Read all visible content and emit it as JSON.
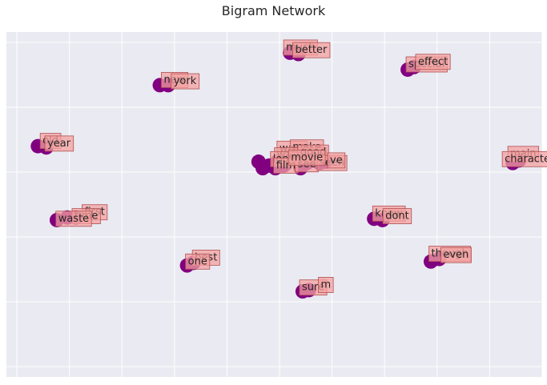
{
  "chart_data": {
    "type": "scatter",
    "title": "Bigram Network",
    "xlabel": "",
    "ylabel": "",
    "xlim": [
      -1.3,
      1.25
    ],
    "ylim": [
      -1.33,
      1.33
    ],
    "grid": true,
    "colors": {
      "background": "#eaeaf2",
      "grid": "#ffffff",
      "node": "#800080",
      "label_box": "#f4a0a0",
      "label_box_edge": "#b05050"
    },
    "nodes": [
      {
        "label": "much",
        "x": 0.05,
        "y": 1.17,
        "lx": 0.1,
        "ly": 1.21
      },
      {
        "label": "better",
        "x": 0.09,
        "y": 1.16,
        "lx": 0.15,
        "ly": 1.19
      },
      {
        "label": "new",
        "x": -0.57,
        "y": 0.92,
        "lx": -0.5,
        "ly": 0.96
      },
      {
        "label": "york",
        "x": -0.53,
        "y": 0.92,
        "lx": -0.45,
        "ly": 0.95
      },
      {
        "label": "special",
        "x": 0.61,
        "y": 1.04,
        "lx": 0.7,
        "ly": 1.08
      },
      {
        "label": "effect",
        "x": 0.64,
        "y": 1.06,
        "lx": 0.73,
        "ly": 1.1
      },
      {
        "label": "old",
        "x": -1.15,
        "y": 0.45,
        "lx": -1.09,
        "ly": 0.49
      },
      {
        "label": "year",
        "x": -1.11,
        "y": 0.44,
        "lx": -1.05,
        "ly": 0.47
      },
      {
        "label": "main",
        "x": 1.14,
        "y": 0.34,
        "lx": 1.16,
        "ly": 0.39
      },
      {
        "label": "character",
        "x": 1.11,
        "y": 0.32,
        "lx": 1.19,
        "ly": 0.35
      },
      {
        "label": "want",
        "x": -0.01,
        "y": 0.33,
        "lx": 0.06,
        "ly": 0.43
      },
      {
        "label": "make",
        "x": 0.09,
        "y": 0.36,
        "lx": 0.13,
        "ly": 0.44
      },
      {
        "label": "watching",
        "x": 0.03,
        "y": 0.34,
        "lx": 0.1,
        "ly": 0.38
      },
      {
        "label": "good",
        "x": 0.16,
        "y": 0.37,
        "lx": 0.16,
        "ly": 0.4
      },
      {
        "label": "look",
        "x": -0.05,
        "y": 0.3,
        "lx": 0.02,
        "ly": 0.35
      },
      {
        "label": "film",
        "x": 0.02,
        "y": 0.3,
        "lx": 0.03,
        "ly": 0.3
      },
      {
        "label": "see",
        "x": 0.13,
        "y": 0.32,
        "lx": 0.13,
        "ly": 0.31
      },
      {
        "label": "seen",
        "x": 0.19,
        "y": 0.32,
        "lx": 0.25,
        "ly": 0.32
      },
      {
        "label": "ve",
        "x": 0.22,
        "y": 0.33,
        "lx": 0.27,
        "ly": 0.34
      },
      {
        "label": "movie",
        "x": -0.1,
        "y": 0.33,
        "lx": 0.13,
        "ly": 0.36
      },
      {
        "label": "first",
        "x": -0.97,
        "y": -0.1,
        "lx": -0.88,
        "ly": -0.06
      },
      {
        "label": "time",
        "x": -1.01,
        "y": -0.1,
        "lx": -0.92,
        "ly": -0.09
      },
      {
        "label": "waste",
        "x": -1.06,
        "y": -0.12,
        "lx": -0.98,
        "ly": -0.11
      },
      {
        "label": "know",
        "x": 0.45,
        "y": -0.11,
        "lx": 0.52,
        "ly": -0.07
      },
      {
        "label": "dont",
        "x": 0.49,
        "y": -0.12,
        "lx": 0.56,
        "ly": -0.09
      },
      {
        "label": "best",
        "x": -0.41,
        "y": -0.45,
        "lx": -0.35,
        "ly": -0.41
      },
      {
        "label": "one",
        "x": -0.44,
        "y": -0.47,
        "lx": -0.39,
        "ly": -0.44
      },
      {
        "label": "though",
        "x": 0.76,
        "y": -0.42,
        "lx": 0.81,
        "ly": -0.38
      },
      {
        "label": "even",
        "x": 0.72,
        "y": -0.44,
        "lx": 0.84,
        "ly": -0.39
      },
      {
        "label": "sure",
        "x": 0.11,
        "y": -0.67,
        "lx": 0.16,
        "ly": -0.64
      },
      {
        "label": "m",
        "x": 0.14,
        "y": -0.66,
        "lx": 0.22,
        "ly": -0.62
      }
    ],
    "extra_nodes": [
      {
        "x": -0.08,
        "y": 0.28
      },
      {
        "x": -0.02,
        "y": 0.28
      },
      {
        "x": 0.1,
        "y": 0.28
      }
    ]
  }
}
